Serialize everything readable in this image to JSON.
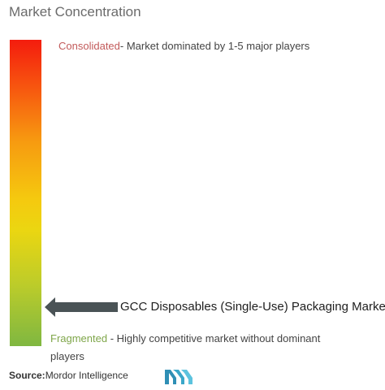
{
  "title": "Market Concentration",
  "scale": {
    "top": {
      "keyword": "Consolidated",
      "description": "- Market dominated by 1-5 major players",
      "keyword_color": "#c25a5a"
    },
    "bottom": {
      "keyword": "Fragmented",
      "description": " - Highly competitive market without dominant players",
      "keyword_color": "#7fa64a"
    },
    "gradient_colors": [
      "#f41c0e",
      "#f79a10",
      "#f5c90f",
      "#7fb741"
    ]
  },
  "marker": {
    "label": "GCC Disposables (Single-Use) Packaging Market",
    "arrow_color": "#4a5356"
  },
  "source": {
    "label": "Source:",
    "value": "Mordor Intelligence"
  },
  "logo": {
    "icon": "mordor-intelligence-logo-icon",
    "color": "#3aa7c9"
  }
}
